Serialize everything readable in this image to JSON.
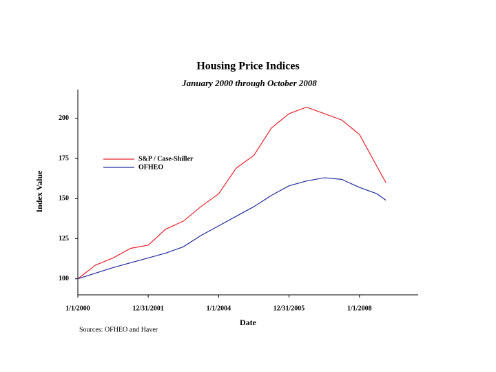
{
  "chart_data": {
    "type": "line",
    "title": "Housing Price Indices",
    "subtitle": "January 2000 through October 2008",
    "x_label": "Date",
    "y_label": "Index Value",
    "note": "Sources: OFHEO and Haver",
    "x": [
      "1/1/2000",
      "7/1/2000",
      "1/1/2001",
      "7/1/2001",
      "1/1/2002",
      "7/1/2002",
      "1/1/2003",
      "7/1/2003",
      "1/1/2004",
      "7/1/2004",
      "1/1/2005",
      "7/1/2005",
      "1/1/2006",
      "7/1/2006",
      "1/1/2007",
      "7/1/2007",
      "1/1/2008",
      "7/1/2008",
      "10/1/2008"
    ],
    "series": [
      {
        "name": "S&P / Case-Shiller",
        "color": "#e8202a",
        "values": [
          100,
          108.5,
          113,
          119,
          121,
          131,
          136,
          145,
          153,
          169,
          177,
          194,
          203,
          207,
          203,
          199,
          190,
          170,
          160
        ]
      },
      {
        "name": "OFHEO",
        "color": "#1f2a9c",
        "values": [
          100,
          103.5,
          107,
          110,
          113,
          116,
          120,
          127,
          133,
          139,
          145,
          152,
          158,
          161,
          163,
          162,
          157,
          153,
          149
        ]
      }
    ],
    "xlim": [
      "1/1/2000",
      "9/1/2009"
    ],
    "xticks": [
      "1/1/2000",
      "12/31/2001",
      "1/1/2004",
      "12/31/2005",
      "1/1/2008"
    ],
    "ylim": [
      90,
      218
    ],
    "yticks": [
      100,
      125,
      150,
      175,
      200
    ],
    "legend": "left"
  }
}
